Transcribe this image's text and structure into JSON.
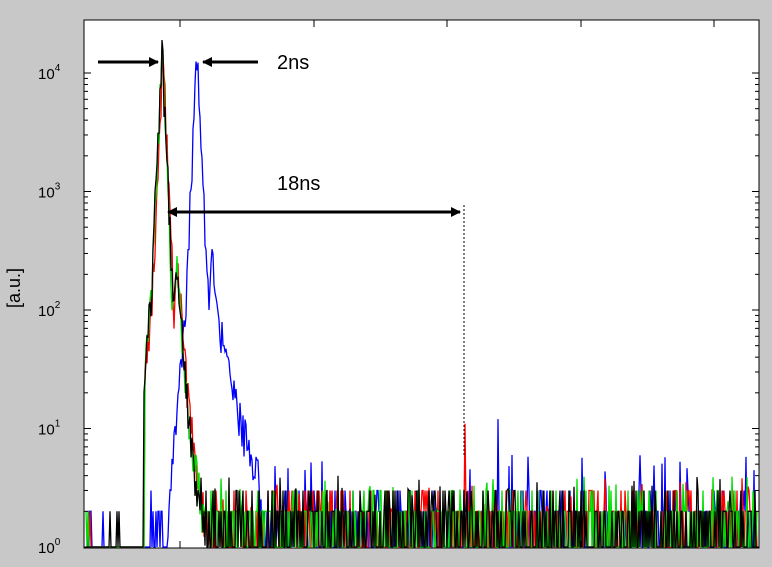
{
  "chart_data": {
    "type": "line",
    "title": "",
    "xlabel": "",
    "ylabel": "[a.u.]",
    "y_scale": "log",
    "ylim": [
      1,
      20000
    ],
    "x_tick_labels": [],
    "y_ticks": [
      {
        "value": 1,
        "base": "10",
        "exp": "0"
      },
      {
        "value": 10,
        "base": "10",
        "exp": "1"
      },
      {
        "value": 100,
        "base": "10",
        "exp": "2"
      },
      {
        "value": 1000,
        "base": "10",
        "exp": "3"
      },
      {
        "value": 10000,
        "base": "10",
        "exp": "4"
      }
    ],
    "grid": false,
    "legend": "none",
    "series": [
      {
        "color": "#0000ff",
        "peak": 17000,
        "tail_level": 4
      },
      {
        "color": "#ff0000",
        "peak": 16000,
        "tail_level": 2
      },
      {
        "color": "#00dd00",
        "peak": 15000,
        "tail_level": 2
      },
      {
        "color": "#000000",
        "peak": 17500,
        "tail_level": 2
      }
    ],
    "annotations": [
      {
        "text": "2ns",
        "kind": "pulse-separation"
      },
      {
        "text": "18ns",
        "kind": "interval"
      }
    ]
  }
}
